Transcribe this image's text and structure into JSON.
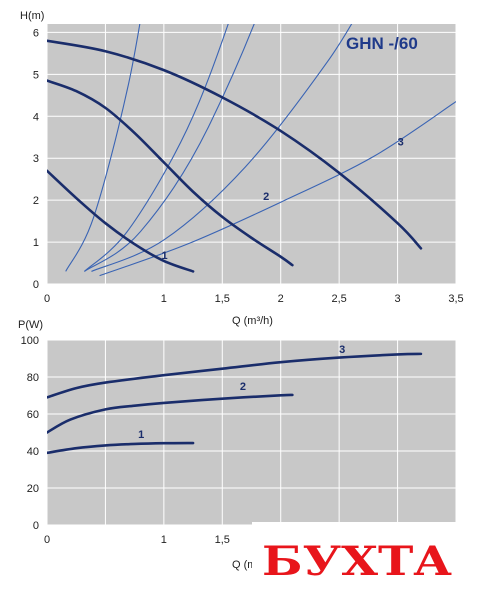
{
  "colors": {
    "background": "#c8c8c8",
    "grid": "#ffffff",
    "pump_curve": "#1a2d6b",
    "system_curve": "#3a64b4",
    "title": "#1f3a8a",
    "watermark": "#e8151b"
  },
  "watermark": {
    "text": "БУХТА"
  },
  "chart_data": [
    {
      "type": "line",
      "title": "GHN -/60",
      "ylabel": "H(m)",
      "xlabel": "Q (m³/h)",
      "xlim": [
        0,
        3.5
      ],
      "ylim": [
        0,
        6.2
      ],
      "x_ticks": [
        {
          "v": 0,
          "label": "0"
        },
        {
          "v": 0.5,
          "label": ""
        },
        {
          "v": 1,
          "label": "1"
        },
        {
          "v": 1.5,
          "label": "1,5"
        },
        {
          "v": 2,
          "label": "2"
        },
        {
          "v": 2.5,
          "label": "2,5"
        },
        {
          "v": 3,
          "label": "3"
        },
        {
          "v": 3.5,
          "label": "3,5"
        }
      ],
      "y_ticks": [
        {
          "v": 0,
          "label": "0"
        },
        {
          "v": 1,
          "label": "1"
        },
        {
          "v": 2,
          "label": "2"
        },
        {
          "v": 3,
          "label": "3"
        },
        {
          "v": 4,
          "label": "4"
        },
        {
          "v": 5,
          "label": "5"
        },
        {
          "v": 6,
          "label": "6"
        }
      ],
      "grid": true,
      "series": [
        {
          "name": "1",
          "x": [
            0,
            0.25,
            0.5,
            0.75,
            1.0,
            1.25
          ],
          "y": [
            2.7,
            2.05,
            1.45,
            0.95,
            0.55,
            0.3
          ]
        },
        {
          "name": "2",
          "x": [
            0,
            0.25,
            0.5,
            0.75,
            1.0,
            1.25,
            1.5,
            1.75,
            2.0,
            2.1
          ],
          "y": [
            4.85,
            4.6,
            4.2,
            3.6,
            2.9,
            2.2,
            1.6,
            1.1,
            0.65,
            0.45
          ]
        },
        {
          "name": "3",
          "x": [
            0,
            0.5,
            1.0,
            1.5,
            2.0,
            2.5,
            3.0,
            3.2
          ],
          "y": [
            5.8,
            5.55,
            5.1,
            4.45,
            3.65,
            2.65,
            1.45,
            0.85
          ]
        }
      ],
      "system_curves": [
        {
          "x": [
            0.16,
            0.4,
            0.7,
            0.9
          ],
          "y": [
            0.3,
            1.6,
            4.8,
            8.0
          ]
        },
        {
          "x": [
            0.32,
            0.7,
            1.2,
            1.6,
            2.0
          ],
          "y": [
            0.3,
            1.3,
            3.7,
            6.6,
            10.2
          ]
        },
        {
          "x": [
            0.32,
            0.8,
            1.4,
            2.1,
            2.9
          ],
          "y": [
            0.3,
            1.25,
            3.85,
            8.7,
            16.5
          ]
        },
        {
          "x": [
            0.38,
            1.0,
            1.7,
            2.4,
            2.75
          ],
          "y": [
            0.3,
            1.05,
            2.8,
            5.3,
            6.9
          ]
        },
        {
          "x": [
            0.45,
            1.2,
            2.0,
            2.8,
            3.5
          ],
          "y": [
            0.2,
            0.95,
            1.95,
            3.05,
            4.35
          ]
        }
      ]
    },
    {
      "type": "line",
      "ylabel": "P(W)",
      "xlabel": "Q (m",
      "xlim": [
        0,
        3.5
      ],
      "ylim": [
        0,
        100
      ],
      "x_ticks": [
        {
          "v": 0,
          "label": "0"
        },
        {
          "v": 0.5,
          "label": ""
        },
        {
          "v": 1,
          "label": "1"
        },
        {
          "v": 1.5,
          "label": "1,5"
        },
        {
          "v": 2,
          "label": ""
        },
        {
          "v": 2.5,
          "label": ""
        },
        {
          "v": 3,
          "label": ""
        },
        {
          "v": 3.5,
          "label": ""
        }
      ],
      "y_ticks": [
        {
          "v": 0,
          "label": "0"
        },
        {
          "v": 20,
          "label": "20"
        },
        {
          "v": 40,
          "label": "40"
        },
        {
          "v": 60,
          "label": "60"
        },
        {
          "v": 80,
          "label": "80"
        },
        {
          "v": 100,
          "label": "100"
        }
      ],
      "grid": true,
      "series": [
        {
          "name": "1",
          "x": [
            0,
            0.25,
            0.5,
            0.75,
            1.0,
            1.25
          ],
          "y": [
            39,
            41.5,
            43,
            43.8,
            44.2,
            44.3
          ]
        },
        {
          "name": "2",
          "x": [
            0,
            0.2,
            0.5,
            0.75,
            1.0,
            1.5,
            2.0,
            2.1
          ],
          "y": [
            50,
            57,
            62.5,
            64.5,
            66,
            68.3,
            70.1,
            70.3
          ]
        },
        {
          "name": "3",
          "x": [
            0,
            0.25,
            0.5,
            1.0,
            1.5,
            2.0,
            2.5,
            3.0,
            3.2
          ],
          "y": [
            69,
            74,
            77,
            81,
            84.5,
            88,
            90.5,
            92.2,
            92.5
          ]
        }
      ]
    }
  ]
}
